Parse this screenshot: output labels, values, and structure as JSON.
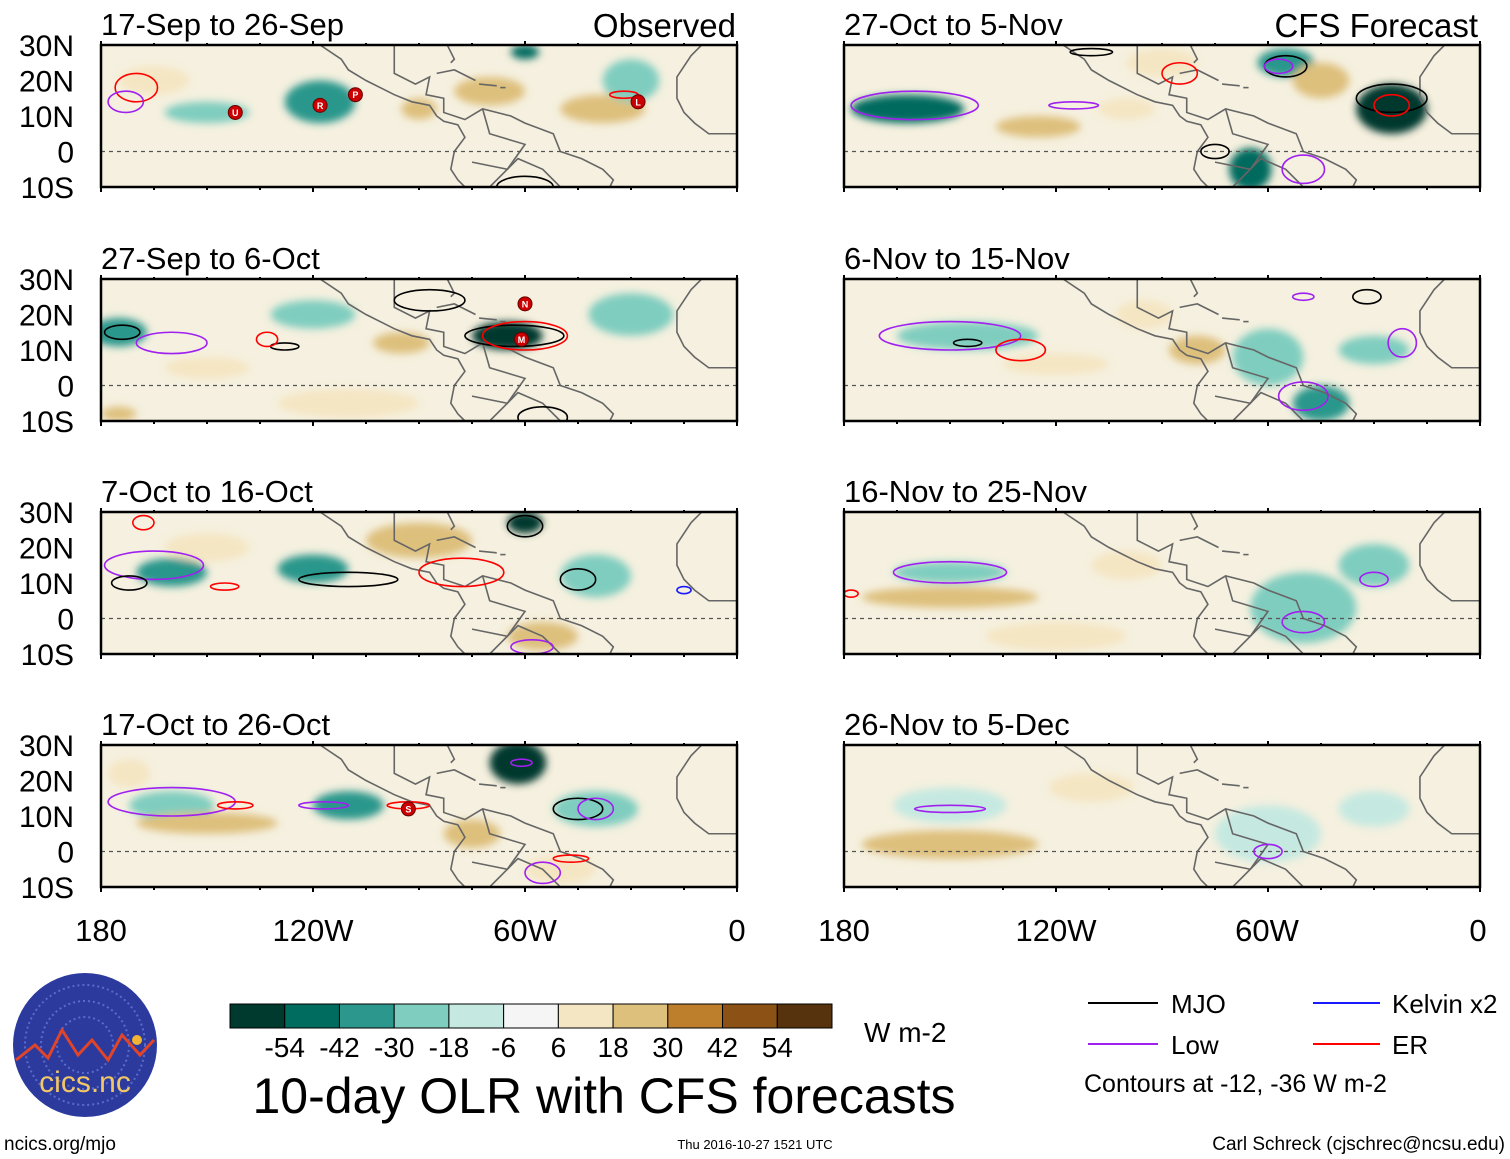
{
  "figure_title": "10-day OLR with CFS forecasts",
  "column_labels": {
    "observed": "Observed",
    "forecast": "CFS Forecast"
  },
  "lat_labels": [
    "30N",
    "20N",
    "10N",
    "0",
    "10S"
  ],
  "lon_labels": [
    "180",
    "120W",
    "60W",
    "0"
  ],
  "colorbar": {
    "unit": "W m-2",
    "ticks": [
      "-54",
      "-42",
      "-30",
      "-18",
      "-6",
      "6",
      "18",
      "30",
      "42",
      "54"
    ],
    "levels": [
      -60,
      -48,
      -36,
      -24,
      -12,
      0,
      12,
      24,
      36,
      48,
      60
    ],
    "colors": [
      "#00392e",
      "#006b5f",
      "#2c978c",
      "#7fcdbf",
      "#c5e9e1",
      "#f5f5f5",
      "#f5e6c3",
      "#dec07d",
      "#be7f2c",
      "#8c5215",
      "#56330c"
    ]
  },
  "legend": {
    "items": [
      {
        "label": "MJO",
        "color": "#000000"
      },
      {
        "label": "Kelvin x2",
        "color": "#1a1aff"
      },
      {
        "label": "Low",
        "color": "#a020f0"
      },
      {
        "label": "ER",
        "color": "#ff0000"
      }
    ],
    "note": "Contours at -12, -36 W m-2"
  },
  "footer": {
    "left": "ncics.org/mjo",
    "center": "Thu 2016-10-27 1521 UTC",
    "right": "Carl Schreck (cjschrec@ncsu.edu)"
  },
  "logo": {
    "text": "cics.nc",
    "ring_text": "Cooperative Institute for Climate and Satellites"
  },
  "panels": [
    {
      "title": "17-Sep to 26-Sep",
      "column": "observed",
      "blobs": [
        [
          -150,
          11,
          12,
          3,
          -24
        ],
        [
          -118,
          14,
          10,
          6,
          -30
        ],
        [
          -70,
          17,
          10,
          4,
          30
        ],
        [
          -38,
          12,
          12,
          4,
          30
        ],
        [
          -60,
          28,
          4,
          2,
          -48
        ],
        [
          -30,
          20,
          8,
          6,
          -18
        ],
        [
          -165,
          20,
          10,
          4,
          18
        ],
        [
          -90,
          12,
          5,
          3,
          30
        ]
      ],
      "contours": [
        [
          -170,
          18,
          6,
          4,
          "ER"
        ],
        [
          -173,
          14,
          5,
          3,
          "Low"
        ],
        [
          -60,
          -10,
          8,
          3,
          "MJO"
        ],
        [
          -32,
          16,
          4,
          1,
          "ER"
        ]
      ],
      "storms": [
        [
          "U",
          -142,
          11
        ],
        [
          "R",
          -118,
          13
        ],
        [
          "P",
          -108,
          16
        ],
        [
          "L",
          -28,
          14
        ]
      ]
    },
    {
      "title": "27-Oct to 5-Nov",
      "column": "forecast",
      "blobs": [
        [
          -162,
          12,
          16,
          4,
          -42
        ],
        [
          -25,
          12,
          10,
          7,
          -54
        ],
        [
          -65,
          -5,
          6,
          6,
          -42
        ],
        [
          -55,
          25,
          8,
          4,
          -30
        ],
        [
          -125,
          7,
          12,
          3,
          30
        ],
        [
          -45,
          20,
          8,
          5,
          24
        ],
        [
          -100,
          12,
          8,
          3,
          18
        ],
        [
          -90,
          25,
          10,
          4,
          18
        ]
      ],
      "contours": [
        [
          -160,
          13,
          18,
          4,
          "Low"
        ],
        [
          -25,
          15,
          10,
          4,
          "MJO"
        ],
        [
          -25,
          13,
          5,
          3,
          "ER"
        ],
        [
          -55,
          24,
          6,
          3,
          "MJO"
        ],
        [
          -57,
          24,
          4,
          2,
          "Low"
        ],
        [
          -85,
          22,
          5,
          3,
          "ER"
        ],
        [
          -50,
          -5,
          6,
          4,
          "Low"
        ],
        [
          -75,
          0,
          4,
          2,
          "MJO"
        ],
        [
          -115,
          13,
          7,
          1,
          "Low"
        ],
        [
          -110,
          28,
          6,
          1,
          "MJO"
        ]
      ],
      "storms": []
    },
    {
      "title": "27-Sep to 6-Oct",
      "column": "observed",
      "blobs": [
        [
          -65,
          14,
          10,
          4,
          -54
        ],
        [
          -175,
          15,
          8,
          4,
          -30
        ],
        [
          -120,
          20,
          12,
          4,
          -18
        ],
        [
          -95,
          12,
          8,
          3,
          30
        ],
        [
          -150,
          5,
          12,
          3,
          18
        ],
        [
          -110,
          -5,
          20,
          4,
          18
        ],
        [
          -30,
          20,
          12,
          6,
          -18
        ],
        [
          -175,
          -8,
          5,
          2,
          30
        ]
      ],
      "contours": [
        [
          -63,
          14,
          14,
          3,
          "MJO"
        ],
        [
          -60,
          14,
          12,
          4,
          "ER"
        ],
        [
          -87,
          24,
          10,
          3,
          "MJO"
        ],
        [
          -174,
          15,
          5,
          2,
          "MJO"
        ],
        [
          -160,
          12,
          10,
          3,
          "Low"
        ],
        [
          -128,
          11,
          4,
          1,
          "MJO"
        ],
        [
          -133,
          13,
          3,
          2,
          "ER"
        ],
        [
          -55,
          -9,
          7,
          3,
          "MJO"
        ]
      ],
      "storms": [
        [
          "N",
          -60,
          23
        ],
        [
          "M",
          -61,
          13
        ]
      ]
    },
    {
      "title": "6-Nov to 15-Nov",
      "column": "forecast",
      "blobs": [
        [
          -145,
          14,
          20,
          4,
          -18
        ],
        [
          -80,
          10,
          8,
          4,
          30
        ],
        [
          -60,
          8,
          10,
          8,
          -18
        ],
        [
          -45,
          -5,
          8,
          5,
          -30
        ],
        [
          -30,
          10,
          10,
          4,
          -18
        ],
        [
          -120,
          6,
          15,
          3,
          18
        ],
        [
          -95,
          20,
          8,
          4,
          18
        ]
      ],
      "contours": [
        [
          -150,
          14,
          20,
          4,
          "Low"
        ],
        [
          -145,
          12,
          4,
          1,
          "MJO"
        ],
        [
          -130,
          10,
          7,
          3,
          "ER"
        ],
        [
          -50,
          -3,
          7,
          4,
          "Low"
        ],
        [
          -22,
          12,
          4,
          4,
          "Low"
        ],
        [
          -50,
          25,
          3,
          1,
          "Low"
        ],
        [
          -32,
          25,
          4,
          2,
          "MJO"
        ]
      ],
      "storms": []
    },
    {
      "title": "7-Oct to 16-Oct",
      "column": "observed",
      "blobs": [
        [
          -160,
          13,
          10,
          4,
          -30
        ],
        [
          -120,
          14,
          10,
          4,
          -36
        ],
        [
          -60,
          27,
          5,
          3,
          -54
        ],
        [
          -90,
          22,
          15,
          5,
          24
        ],
        [
          -150,
          20,
          12,
          4,
          18
        ],
        [
          -55,
          -5,
          10,
          4,
          24
        ],
        [
          -40,
          12,
          10,
          6,
          -18
        ]
      ],
      "contours": [
        [
          -165,
          15,
          14,
          4,
          "Low"
        ],
        [
          -172,
          10,
          5,
          2,
          "MJO"
        ],
        [
          -110,
          11,
          14,
          2,
          "MJO"
        ],
        [
          -78,
          13,
          12,
          4,
          "ER"
        ],
        [
          -60,
          26,
          5,
          3,
          "MJO"
        ],
        [
          -45,
          11,
          5,
          3,
          "MJO"
        ],
        [
          -145,
          9,
          4,
          1,
          "ER"
        ],
        [
          -168,
          27,
          3,
          2,
          "ER"
        ],
        [
          -15,
          8,
          2,
          1,
          "Kelvin x2"
        ],
        [
          -58,
          -8,
          6,
          2,
          "Low"
        ]
      ],
      "storms": []
    },
    {
      "title": "16-Nov to 25-Nov",
      "column": "forecast",
      "blobs": [
        [
          -150,
          13,
          16,
          3,
          -18
        ],
        [
          -150,
          6,
          25,
          3,
          24
        ],
        [
          -50,
          3,
          15,
          10,
          -18
        ],
        [
          -30,
          15,
          10,
          6,
          -18
        ],
        [
          -100,
          15,
          10,
          4,
          12
        ],
        [
          -120,
          -5,
          20,
          4,
          12
        ]
      ],
      "contours": [
        [
          -150,
          13,
          16,
          3,
          "Low"
        ],
        [
          -50,
          -1,
          6,
          3,
          "Low"
        ],
        [
          -30,
          11,
          4,
          2,
          "Low"
        ],
        [
          -178,
          7,
          2,
          1,
          "ER"
        ]
      ],
      "storms": []
    },
    {
      "title": "17-Oct to 26-Oct",
      "column": "observed",
      "blobs": [
        [
          -62,
          25,
          8,
          6,
          -54
        ],
        [
          -110,
          13,
          10,
          4,
          -36
        ],
        [
          -160,
          13,
          12,
          4,
          -18
        ],
        [
          -150,
          8,
          20,
          3,
          24
        ],
        [
          -75,
          5,
          8,
          4,
          30
        ],
        [
          -50,
          -5,
          10,
          4,
          18
        ],
        [
          -40,
          12,
          12,
          5,
          -24
        ],
        [
          -172,
          22,
          6,
          4,
          18
        ]
      ],
      "contours": [
        [
          -160,
          14,
          18,
          4,
          "Low"
        ],
        [
          -142,
          13,
          5,
          1,
          "ER"
        ],
        [
          -117,
          13,
          7,
          1,
          "Low"
        ],
        [
          -93,
          13,
          6,
          1,
          "ER"
        ],
        [
          -61,
          25,
          3,
          1,
          "Low"
        ],
        [
          -45,
          12,
          7,
          3,
          "MJO"
        ],
        [
          -40,
          12,
          5,
          3,
          "Low"
        ],
        [
          -55,
          -6,
          5,
          3,
          "Low"
        ],
        [
          -47,
          -2,
          5,
          1,
          "ER"
        ]
      ],
      "storms": [
        [
          "S",
          -93,
          12
        ]
      ]
    },
    {
      "title": "26-Nov to 5-Dec",
      "column": "forecast",
      "blobs": [
        [
          -150,
          13,
          16,
          5,
          -12
        ],
        [
          -150,
          2,
          25,
          4,
          24
        ],
        [
          -60,
          5,
          15,
          8,
          -12
        ],
        [
          -30,
          12,
          10,
          5,
          -12
        ],
        [
          -110,
          18,
          12,
          4,
          12
        ]
      ],
      "contours": [
        [
          -150,
          12,
          10,
          1,
          "Low"
        ],
        [
          -60,
          0,
          4,
          2,
          "Low"
        ]
      ],
      "storms": []
    }
  ]
}
